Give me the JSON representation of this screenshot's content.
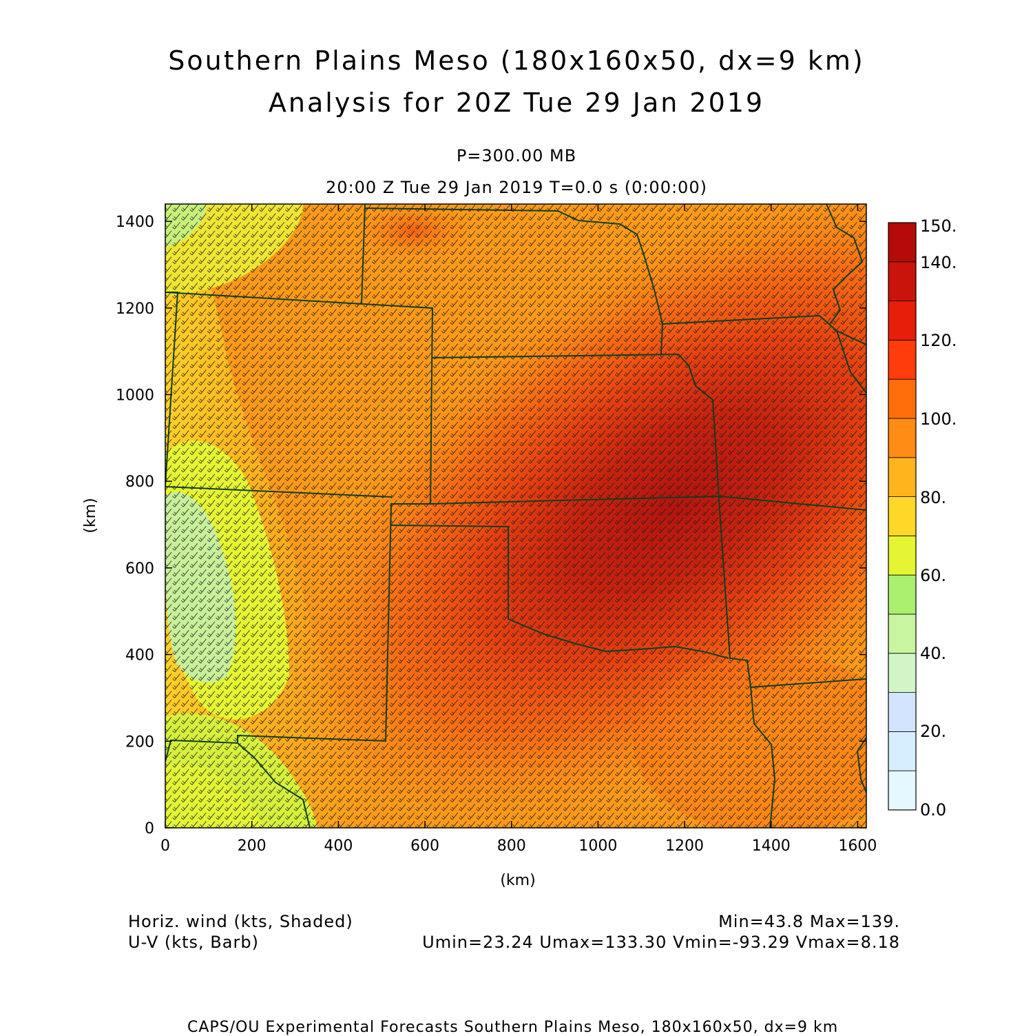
{
  "title": {
    "line1": "Southern Plains Meso (180x160x50, dx=9 km)",
    "line2": "Analysis for 20Z Tue 29 Jan 2019"
  },
  "subtitle": {
    "level": "P=300.00 MB",
    "time": "20:00 Z Tue 29 Jan 2019    T=0.0 s (0:00:00)"
  },
  "axes": {
    "xlabel": "(km)",
    "ylabel": "(km)",
    "xticks": [
      0,
      200,
      400,
      600,
      800,
      1000,
      1200,
      1400,
      1600
    ],
    "yticks": [
      0,
      200,
      400,
      600,
      800,
      1000,
      1200,
      1400
    ],
    "xrange": [
      0,
      1620
    ],
    "yrange": [
      0,
      1440
    ]
  },
  "colorbar": {
    "labels": [
      "0.0",
      "20.",
      "40.",
      "60.",
      "80.",
      "100.",
      "120.",
      "140.",
      "150."
    ],
    "colors": [
      "#e6f8ff",
      "#d6eeff",
      "#d2e4ff",
      "#d2f5c8",
      "#c8f5a0",
      "#aaf06e",
      "#e6f532",
      "#ffd728",
      "#ffb41e",
      "#ff8c14",
      "#ff6e0a",
      "#ff3c0a",
      "#e61e0a",
      "#c8140a",
      "#b40a0a"
    ]
  },
  "legend": {
    "left1": "Horiz. wind (kts, Shaded)",
    "left2": "U-V (kts, Barb)",
    "right1": "Min=43.8 Max=139.",
    "right2": "Umin=23.24 Umax=133.30 Vmin=-93.29 Vmax=8.18"
  },
  "footer": "CAPS/OU Experimental Forecasts  Southern Plains Meso, 180x160x50, dx=9 km",
  "map": {
    "field": "wind speed (kts)",
    "min": 43.8,
    "max": 139,
    "jet_core": {
      "x_km": 1100,
      "y_km": 750,
      "speed_kts": 139
    },
    "colors": {
      "border": "#0f3d1e",
      "barb": "#222222"
    }
  }
}
